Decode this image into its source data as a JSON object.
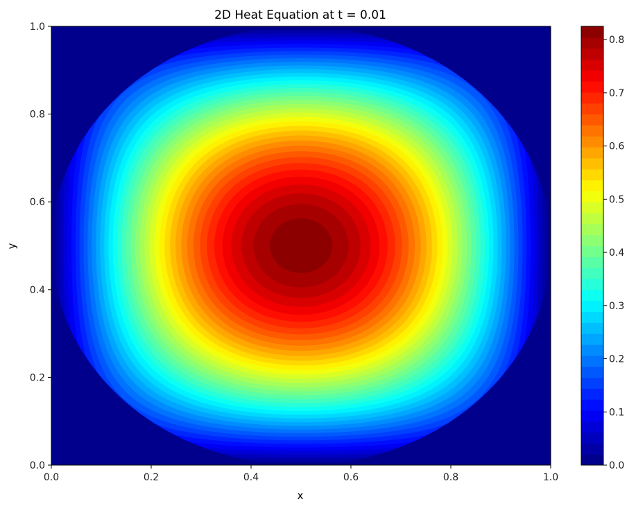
{
  "chart_data": {
    "type": "heatmap",
    "title": "2D Heat Equation at t = 0.01",
    "xlabel": "x",
    "ylabel": "y",
    "xlim": [
      0.0,
      1.0
    ],
    "ylim": [
      0.0,
      1.0
    ],
    "x_ticks": [
      "0.0",
      "0.2",
      "0.4",
      "0.6",
      "0.8",
      "1.0"
    ],
    "y_ticks": [
      "0.0",
      "0.2",
      "0.4",
      "0.6",
      "0.8",
      "1.0"
    ],
    "colorbar": {
      "colormap": "jet",
      "range": [
        0.0,
        0.825
      ],
      "levels": 40,
      "ticks": [
        "0.0",
        "0.1",
        "0.2",
        "0.3",
        "0.4",
        "0.5",
        "0.6",
        "0.7",
        "0.8"
      ]
    },
    "field": {
      "description_value": "peak at center (0.5, 0.5) approximately 0.82, falling to 0.0 at all four boundaries",
      "peak_value": 0.82,
      "peak_location": [
        0.5,
        0.5
      ],
      "boundary_value": 0.0
    },
    "grid": false,
    "legend": "none"
  }
}
